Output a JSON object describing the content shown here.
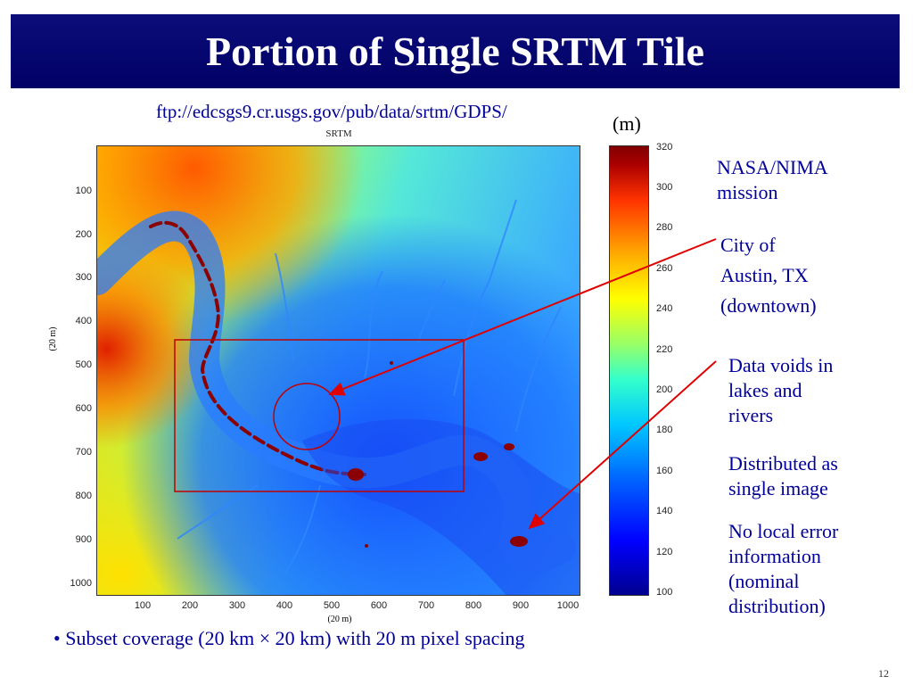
{
  "slide": {
    "title": "Portion of Single SRTM Tile",
    "url": "ftp://edcsgs9.cr.usgs.gov/pub/data/srtm/GDPS/",
    "unit": "(m)",
    "page_number": "12"
  },
  "plot": {
    "title": "SRTM",
    "xlabel": "(20 m)",
    "ylabel": "(20 m)",
    "x_ticks": [
      "100",
      "200",
      "300",
      "400",
      "500",
      "600",
      "700",
      "800",
      "900",
      "1000"
    ],
    "y_ticks": [
      "100",
      "200",
      "300",
      "400",
      "500",
      "600",
      "700",
      "800",
      "900",
      "1000"
    ],
    "colorbar_ticks": [
      "320",
      "300",
      "280",
      "260",
      "240",
      "220",
      "200",
      "180",
      "160",
      "140",
      "120",
      "100"
    ]
  },
  "annotations": {
    "mission": [
      "NASA/NIMA",
      "mission"
    ],
    "city": [
      "City of",
      "Austin, TX",
      "(downtown)"
    ],
    "voids": [
      "Data voids in",
      "lakes and",
      "rivers"
    ],
    "distributed": [
      "Distributed as",
      "single image"
    ],
    "no_error": [
      "No local error",
      "information",
      "(nominal",
      "distribution)"
    ]
  },
  "bullet": "• Subset coverage (20 km × 20 km) with 20 m pixel spacing",
  "colors": {
    "title_bg": "#000066",
    "title_text": "#ffffff",
    "annotation_text": "#000099",
    "arrow": "#e00000",
    "box": "#c00000"
  }
}
